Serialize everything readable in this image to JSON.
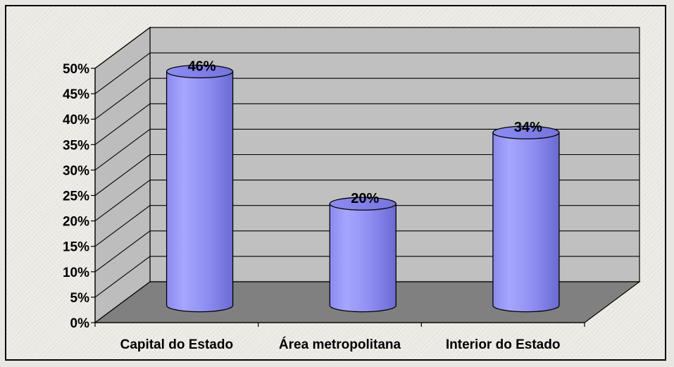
{
  "chart_data": {
    "type": "bar",
    "style": "3d-cylinder",
    "categories": [
      "Capital do Estado",
      "Área metropolitana",
      "Interior do Estado"
    ],
    "values": [
      46,
      20,
      34
    ],
    "data_labels": [
      "46%",
      "20%",
      "34%"
    ],
    "ylim": [
      0,
      50
    ],
    "yticks": [
      0,
      5,
      10,
      15,
      20,
      25,
      30,
      35,
      40,
      45,
      50
    ],
    "ytick_labels": [
      "0%",
      "5%",
      "10%",
      "15%",
      "20%",
      "25%",
      "30%",
      "35%",
      "40%",
      "45%",
      "50%"
    ],
    "grid": true,
    "legend": "none",
    "colors": {
      "bar": "#9a9af5",
      "bar_dark": "#6b6bd6",
      "wall": "#c0c0c0",
      "floor": "#808080",
      "frame_bg": "#ebe9e3"
    }
  }
}
